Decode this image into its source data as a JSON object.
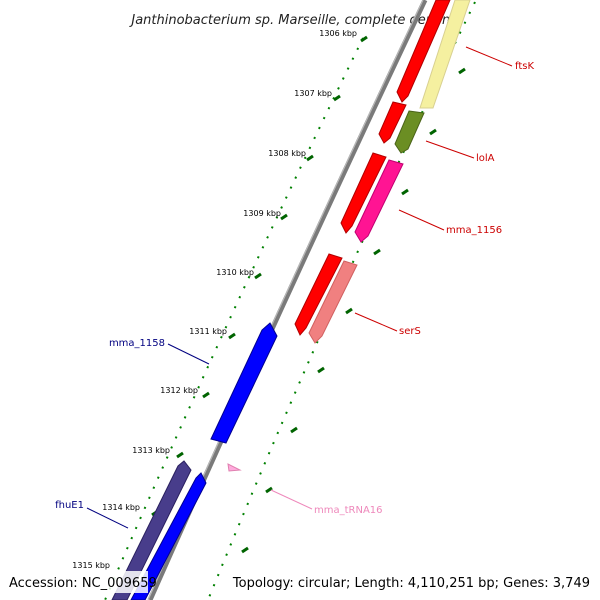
{
  "title": "Janthinobacterium sp. Marseille, complete genome",
  "footer": {
    "accession": "Accession: NC_009659",
    "info": "Topology: circular; Length: 4,110,251 bp; Genes: 3,749"
  },
  "colors": {
    "backbone": "#808080",
    "ticks": "#008000",
    "forward_label": "#000080",
    "reverse_label": "#cc0000",
    "trna_label": "#ee88bb"
  },
  "ticks": [
    {
      "label": "1306 kbp"
    },
    {
      "label": "1307 kbp"
    },
    {
      "label": "1308 kbp"
    },
    {
      "label": "1309 kbp"
    },
    {
      "label": "1310 kbp"
    },
    {
      "label": "1311 kbp"
    },
    {
      "label": "1312 kbp"
    },
    {
      "label": "1313 kbp"
    },
    {
      "label": "1314 kbp"
    },
    {
      "label": "1315 kbp"
    }
  ],
  "genes": [
    {
      "name": "ftsK",
      "color": "#ff0000",
      "strand": "reverse"
    },
    {
      "name": "",
      "color": "#f5f0a0",
      "strand": "reverse"
    },
    {
      "name": "",
      "color": "#ff0000",
      "strand": "reverse"
    },
    {
      "name": "lolA",
      "color": "#6b8e23",
      "strand": "reverse"
    },
    {
      "name": "",
      "color": "#ff0000",
      "strand": "reverse"
    },
    {
      "name": "mma_1156",
      "color": "#ff1493",
      "strand": "reverse"
    },
    {
      "name": "",
      "color": "#ff0000",
      "strand": "reverse"
    },
    {
      "name": "serS",
      "color": "#f08080",
      "strand": "reverse"
    },
    {
      "name": "mma_1158",
      "color": "#0000ff",
      "strand": "forward"
    },
    {
      "name": "mma_tRNA16",
      "color": "#ffaadd",
      "strand": "forward"
    },
    {
      "name": "",
      "color": "#483d8b",
      "strand": "forward"
    },
    {
      "name": "fhuE1",
      "color": "#0000ff",
      "strand": "forward"
    }
  ]
}
